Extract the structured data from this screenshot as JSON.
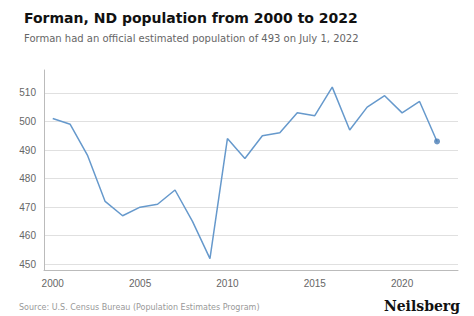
{
  "chart_data": {
    "type": "line",
    "title": "Forman, ND population from 2000 to 2022",
    "subtitle": "Forman had an official estimated population of 493 on July 1, 2022",
    "annotations": [
      "Source: U.S. Census Bureau (Population Estimates Program)",
      "Neilsberg"
    ],
    "series": [
      {
        "type": "line",
        "color": "#6699cc",
        "x": [
          2000,
          2001,
          2002,
          2003,
          2004,
          2005,
          2006,
          2007,
          2008,
          2009,
          2010,
          2011,
          2012,
          2013,
          2014,
          2015,
          2016,
          2017,
          2018,
          2019,
          2020,
          2021,
          2022
        ],
        "values": [
          501,
          499,
          488,
          472,
          467,
          470,
          471,
          476,
          465,
          452,
          494,
          487,
          495,
          496,
          503,
          502,
          512,
          497,
          505,
          509,
          503,
          507,
          493
        ]
      },
      {
        "type": "scatter",
        "color": "#4a7db5",
        "x": [
          2022
        ],
        "values": [
          493
        ]
      }
    ],
    "xlim": [
      1999.5,
      2023.2
    ],
    "xticks": [
      2000,
      2005,
      2010,
      2015,
      2020
    ],
    "ylim": [
      448,
      518
    ],
    "yticks": [
      450,
      460,
      470,
      480,
      490,
      500,
      510
    ],
    "grid": "y"
  }
}
